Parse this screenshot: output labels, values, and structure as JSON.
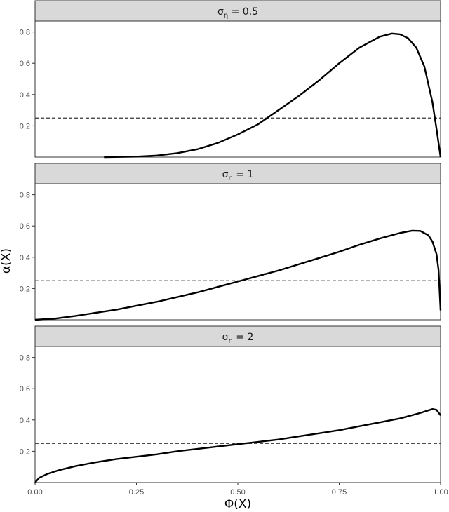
{
  "chart_data": {
    "type": "line",
    "xlabel": "Φ(X)",
    "ylabel": "α(X)",
    "xlim": [
      0,
      1
    ],
    "ylim": [
      0,
      0.87
    ],
    "x_ticks": [
      0,
      0.25,
      0.5,
      0.75,
      1
    ],
    "x_tick_labels": [
      "0.00",
      "0.25",
      "0.50",
      "0.75",
      "1.00"
    ],
    "y_ticks": [
      0.2,
      0.4,
      0.6,
      0.8
    ],
    "y_tick_labels": [
      "0.2",
      "0.4",
      "0.6",
      "0.8"
    ],
    "grid": false,
    "reference_line": {
      "y": 0.25,
      "style": "dashed"
    },
    "panels": [
      {
        "strip": {
          "symbol": "σ",
          "subscript": "η",
          "rhs": " = 0.5"
        },
        "series": [
          {
            "x": [
              0.17,
              0.25,
              0.3,
              0.35,
              0.4,
              0.45,
              0.5,
              0.55,
              0.6,
              0.65,
              0.7,
              0.75,
              0.8,
              0.85,
              0.88,
              0.9,
              0.92,
              0.94,
              0.96,
              0.98,
              0.99,
              1.0
            ],
            "y": [
              0.0,
              0.003,
              0.01,
              0.025,
              0.05,
              0.09,
              0.145,
              0.21,
              0.3,
              0.39,
              0.49,
              0.6,
              0.7,
              0.77,
              0.79,
              0.785,
              0.76,
              0.7,
              0.58,
              0.35,
              0.18,
              0.0
            ]
          }
        ]
      },
      {
        "strip": {
          "symbol": "σ",
          "subscript": "η",
          "rhs": " = 1"
        },
        "series": [
          {
            "x": [
              0.0,
              0.05,
              0.1,
              0.15,
              0.2,
              0.25,
              0.3,
              0.35,
              0.4,
              0.45,
              0.5,
              0.55,
              0.6,
              0.65,
              0.7,
              0.75,
              0.8,
              0.85,
              0.9,
              0.93,
              0.95,
              0.97,
              0.98,
              0.99,
              0.995,
              1.0
            ],
            "y": [
              0.0,
              0.008,
              0.025,
              0.045,
              0.065,
              0.09,
              0.115,
              0.145,
              0.175,
              0.21,
              0.245,
              0.28,
              0.315,
              0.355,
              0.395,
              0.435,
              0.48,
              0.52,
              0.555,
              0.57,
              0.568,
              0.54,
              0.5,
              0.42,
              0.32,
              0.06
            ]
          }
        ]
      },
      {
        "strip": {
          "symbol": "σ",
          "subscript": "η",
          "rhs": " = 2"
        },
        "series": [
          {
            "x": [
              0.0,
              0.01,
              0.03,
              0.06,
              0.1,
              0.15,
              0.2,
              0.25,
              0.3,
              0.35,
              0.4,
              0.45,
              0.5,
              0.55,
              0.6,
              0.65,
              0.7,
              0.75,
              0.8,
              0.85,
              0.9,
              0.95,
              0.98,
              0.99,
              1.0
            ],
            "y": [
              0.0,
              0.03,
              0.055,
              0.08,
              0.105,
              0.13,
              0.15,
              0.165,
              0.18,
              0.2,
              0.215,
              0.23,
              0.245,
              0.26,
              0.275,
              0.295,
              0.315,
              0.335,
              0.36,
              0.385,
              0.41,
              0.445,
              0.47,
              0.465,
              0.43
            ]
          }
        ]
      }
    ]
  }
}
